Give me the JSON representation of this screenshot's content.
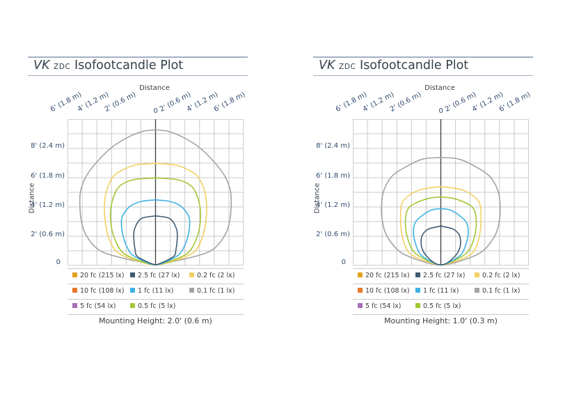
{
  "plots": [
    {
      "title_model": "VK",
      "title_zdc": "ZDC",
      "title_rest": "Isofootcandle Plot",
      "top_axis_label": "Distance",
      "side_axis_label": "Distance",
      "top_ticks": [
        "6' (1.8 m)",
        "4' (1.2 m)",
        "2' (0.6 m)",
        "0",
        "2' (0.6 m)",
        "4' (1.2 m)",
        "6' (1.8 m)"
      ],
      "left_ticks": [
        "8' (2.4 m)",
        "6' (1.8 m)",
        "4' (1.2 m)",
        "2' (0.6 m)",
        "0"
      ],
      "legend": [
        [
          "20 fc (215 lx)",
          "2.5 fc (27 lx)",
          "0.2 fc (2 lx)"
        ],
        [
          "10 fc (108 lx)",
          "1 fc (11 lx)",
          "0.1 fc (1 lx)"
        ],
        [
          "5 fc (54 lx)",
          "0.5 fc (5 lx)"
        ]
      ],
      "caption": "Mounting Height: 2.0' (0.6 m)"
    },
    {
      "title_model": "VK",
      "title_zdc": "ZDC",
      "title_rest": "Isofootcandle Plot",
      "top_axis_label": "Distance",
      "side_axis_label": "Distance",
      "top_ticks": [
        "6' (1.8 m)",
        "4' (1.2 m)",
        "2' (0.6 m)",
        "0",
        "2' (0.6 m)",
        "4' (1.2 m)",
        "6' (1.8 m)"
      ],
      "left_ticks": [
        "8' (2.4 m)",
        "6' (1.8 m)",
        "4' (1.2 m)",
        "2' (0.6 m)",
        "0"
      ],
      "legend": [
        [
          "20 fc (215 lx)",
          "2.5 fc (27 lx)",
          "0.2 fc (2 lx)"
        ],
        [
          "10 fc (108 lx)",
          "1 fc (11 lx)",
          "0.1 fc (1 lx)"
        ],
        [
          "5 fc (54 lx)",
          "0.5 fc (5 lx)"
        ]
      ],
      "caption": "Mounting Height: 1.0' (0.3 m)"
    }
  ],
  "legend_colors": [
    [
      "#e3a11e",
      "#3f5b73",
      "#f2cf62"
    ],
    [
      "#e8772a",
      "#3fb1e3",
      "#a3a3a3"
    ],
    [
      "#a66fb6",
      "#a3c734"
    ]
  ],
  "chart_data": [
    {
      "type": "line",
      "title": "VK ZDC Isofootcandle Plot",
      "xlabel": "Distance",
      "ylabel": "Distance",
      "x_unit": "ft",
      "y_unit": "ft",
      "xlim": [
        -6,
        6
      ],
      "ylim": [
        0,
        9.5
      ],
      "grid": true,
      "x_ticks": [
        -6,
        -4,
        -2,
        0,
        2,
        4,
        6
      ],
      "y_ticks": [
        0,
        2,
        4,
        6,
        8
      ],
      "series": [
        {
          "name": "0.1 fc (1 lx)",
          "color": "#a3a3a3",
          "half_width": [
            [
              0,
              0.3
            ],
            [
              0.5,
              2.8
            ],
            [
              1,
              4.2
            ],
            [
              2,
              5.1
            ],
            [
              3,
              5.45
            ],
            [
              4,
              5.55
            ],
            [
              5,
              5.5
            ],
            [
              6,
              5.1
            ],
            [
              7,
              4.3
            ],
            [
              8,
              3.2
            ],
            [
              8.7,
              2.0
            ],
            [
              9.1,
              0.9
            ],
            [
              9.2,
              0
            ]
          ]
        },
        {
          "name": "0.2 fc (2 lx)",
          "color": "#f2cf62",
          "half_width": [
            [
              0,
              0.5
            ],
            [
              0.5,
              2.2
            ],
            [
              1,
              3.0
            ],
            [
              2,
              3.5
            ],
            [
              3,
              3.7
            ],
            [
              4,
              3.75
            ],
            [
              5,
              3.6
            ],
            [
              6,
              3.1
            ],
            [
              6.5,
              2.3
            ],
            [
              6.8,
              1.4
            ],
            [
              6.9,
              0
            ]
          ]
        },
        {
          "name": "0.5 fc (5 lx)",
          "color": "#a3c734",
          "half_width": [
            [
              0,
              0.4
            ],
            [
              0.5,
              1.9
            ],
            [
              1,
              2.6
            ],
            [
              2,
              3.1
            ],
            [
              3,
              3.3
            ],
            [
              4,
              3.25
            ],
            [
              5,
              2.9
            ],
            [
              5.5,
              2.4
            ],
            [
              5.8,
              1.5
            ],
            [
              5.9,
              0
            ]
          ]
        },
        {
          "name": "1 fc (11 lx)",
          "color": "#3fb1e3",
          "half_width": [
            [
              0,
              0.3
            ],
            [
              0.5,
              1.5
            ],
            [
              1,
              2.0
            ],
            [
              2,
              2.4
            ],
            [
              3,
              2.5
            ],
            [
              3.5,
              2.3
            ],
            [
              4,
              1.8
            ],
            [
              4.3,
              1.0
            ],
            [
              4.4,
              0
            ]
          ]
        },
        {
          "name": "2.5 fc (27 lx)",
          "color": "#3f5b73",
          "half_width": [
            [
              0,
              0.2
            ],
            [
              0.5,
              1.3
            ],
            [
              1,
              1.5
            ],
            [
              2,
              1.6
            ],
            [
              2.5,
              1.5
            ],
            [
              3,
              1.2
            ],
            [
              3.2,
              0.8
            ],
            [
              3.3,
              0
            ]
          ]
        }
      ]
    },
    {
      "type": "line",
      "title": "VK ZDC Isofootcandle Plot",
      "xlabel": "Distance",
      "ylabel": "Distance",
      "x_unit": "ft",
      "y_unit": "ft",
      "xlim": [
        -6,
        6
      ],
      "ylim": [
        0,
        9.5
      ],
      "grid": true,
      "x_ticks": [
        -6,
        -4,
        -2,
        0,
        2,
        4,
        6
      ],
      "y_ticks": [
        0,
        2,
        4,
        6,
        8
      ],
      "series": [
        {
          "name": "0.1 fc (1 lx)",
          "color": "#a3a3a3",
          "half_width": [
            [
              0,
              0.6
            ],
            [
              0.5,
              2.3
            ],
            [
              1,
              3.2
            ],
            [
              2,
              4.0
            ],
            [
              3,
              4.3
            ],
            [
              4,
              4.35
            ],
            [
              5,
              4.2
            ],
            [
              6,
              3.6
            ],
            [
              6.7,
              2.5
            ],
            [
              7.2,
              1.3
            ],
            [
              7.3,
              0
            ]
          ]
        },
        {
          "name": "0.2 fc (2 lx)",
          "color": "#f2cf62",
          "half_width": [
            [
              0,
              0.4
            ],
            [
              0.5,
              1.9
            ],
            [
              1,
              2.5
            ],
            [
              2,
              2.85
            ],
            [
              3,
              2.95
            ],
            [
              4,
              2.9
            ],
            [
              4.5,
              2.6
            ],
            [
              5,
              1.8
            ],
            [
              5.2,
              1.0
            ],
            [
              5.3,
              0
            ]
          ]
        },
        {
          "name": "0.5 fc (5 lx)",
          "color": "#a3c734",
          "half_width": [
            [
              0,
              0.3
            ],
            [
              0.5,
              1.5
            ],
            [
              1,
              2.1
            ],
            [
              2,
              2.5
            ],
            [
              3,
              2.6
            ],
            [
              3.8,
              2.4
            ],
            [
              4.2,
              1.8
            ],
            [
              4.5,
              0.9
            ],
            [
              4.6,
              0
            ]
          ]
        },
        {
          "name": "1 fc (11 lx)",
          "color": "#3fb1e3",
          "half_width": [
            [
              0,
              0.3
            ],
            [
              0.5,
              1.3
            ],
            [
              1,
              1.7
            ],
            [
              2,
              2.0
            ],
            [
              2.8,
              1.9
            ],
            [
              3.3,
              1.4
            ],
            [
              3.7,
              0.7
            ],
            [
              3.8,
              0
            ]
          ]
        },
        {
          "name": "2.5 fc (27 lx)",
          "color": "#3f5b73",
          "half_width": [
            [
              0,
              0.3
            ],
            [
              0.5,
              1.0
            ],
            [
              1,
              1.35
            ],
            [
              1.5,
              1.45
            ],
            [
              2,
              1.35
            ],
            [
              2.4,
              0.9
            ],
            [
              2.6,
              0
            ]
          ]
        }
      ]
    }
  ]
}
